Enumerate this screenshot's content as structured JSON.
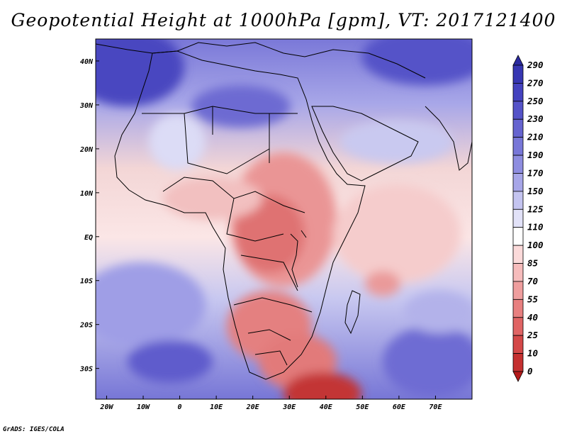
{
  "title": "Geopotential Height at 1000hPa [gpm], VT: 2017121400",
  "credit": "GrADS: IGES/COLA",
  "map": {
    "lon_range": [
      -23,
      80
    ],
    "lat_range": [
      -37,
      45
    ],
    "lat_ticks": [
      {
        "value": 40,
        "label": "40N"
      },
      {
        "value": 30,
        "label": "30N"
      },
      {
        "value": 20,
        "label": "20N"
      },
      {
        "value": 10,
        "label": "10N"
      },
      {
        "value": 0,
        "label": "EQ"
      },
      {
        "value": -10,
        "label": "10S"
      },
      {
        "value": -20,
        "label": "20S"
      },
      {
        "value": -30,
        "label": "30S"
      }
    ],
    "lon_ticks": [
      {
        "value": -20,
        "label": "20W"
      },
      {
        "value": -10,
        "label": "10W"
      },
      {
        "value": 0,
        "label": "0"
      },
      {
        "value": 10,
        "label": "10E"
      },
      {
        "value": 20,
        "label": "20E"
      },
      {
        "value": 30,
        "label": "30E"
      },
      {
        "value": 40,
        "label": "40E"
      },
      {
        "value": 50,
        "label": "50E"
      },
      {
        "value": 60,
        "label": "60E"
      },
      {
        "value": 70,
        "label": "70E"
      }
    ]
  },
  "colorbar": {
    "levels": [
      "290",
      "270",
      "250",
      "230",
      "210",
      "190",
      "170",
      "150",
      "125",
      "110",
      "100",
      "85",
      "70",
      "55",
      "40",
      "25",
      "10",
      "0"
    ],
    "colors": [
      "#2b2aa0",
      "#3736b2",
      "#4442bf",
      "#5553c8",
      "#6664d0",
      "#7877d8",
      "#8e8de0",
      "#a7a6e8",
      "#c4c4f0",
      "#e2e2f8",
      "#ffffff",
      "#fbdada",
      "#f6bcbc",
      "#ef9e9e",
      "#e88080",
      "#e06464",
      "#d44848",
      "#c53030",
      "#b51a1a"
    ]
  }
}
